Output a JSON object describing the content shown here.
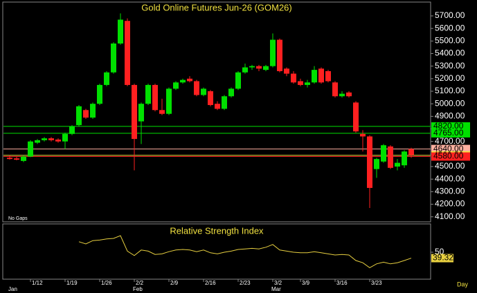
{
  "chart_data": {
    "type": "candlestick",
    "title": "Gold Online Futures Jun-26 (GOM26)",
    "subtitle": "No Gaps",
    "x_unit": "Day",
    "categories": [
      null,
      null,
      null,
      "1/12",
      null,
      null,
      null,
      null,
      "1/19",
      null,
      null,
      null,
      null,
      "1/26",
      null,
      null,
      null,
      null,
      "2/2",
      null,
      null,
      null,
      null,
      "2/9",
      null,
      null,
      null,
      null,
      "2/16",
      null,
      null,
      null,
      null,
      "2/23",
      null,
      null,
      null,
      null,
      "3/2",
      null,
      null,
      null,
      "3/9",
      null,
      null,
      null,
      null,
      "3/16",
      null,
      null,
      null,
      null,
      "3/23",
      null,
      null,
      null,
      null,
      null,
      null
    ],
    "months": [
      "Jan",
      null,
      null,
      null,
      null,
      null,
      null,
      null,
      null,
      null,
      null,
      null,
      null,
      null,
      null,
      null,
      null,
      null,
      "Feb",
      null,
      null,
      null,
      null,
      null,
      null,
      null,
      null,
      null,
      null,
      null,
      null,
      null,
      null,
      null,
      null,
      null,
      null,
      null,
      "Mar",
      null,
      null,
      null,
      null,
      null,
      null,
      null,
      null,
      null,
      null,
      null,
      null,
      null,
      null,
      null,
      null,
      null,
      null,
      null,
      null
    ],
    "open": [
      4570,
      4565,
      4545,
      4580,
      4690,
      4710,
      4725,
      4715,
      4700,
      4760,
      4830,
      4950,
      4890,
      5000,
      5150,
      5250,
      5480,
      5660,
      5150,
      4860,
      5000,
      5150,
      4950,
      4920,
      5120,
      5170,
      5200,
      5180,
      5070,
      5100,
      5000,
      4960,
      5060,
      5120,
      5250,
      5290,
      5300,
      5270,
      5300,
      5510,
      5280,
      5240,
      5180,
      5150,
      5170,
      5280,
      5260,
      5170,
      5060,
      5090,
      5010,
      4760,
      4740,
      4480,
      4540,
      4660,
      4500,
      4510,
      4640
    ],
    "high": [
      4590,
      4580,
      4590,
      4710,
      4720,
      4735,
      4735,
      4725,
      4770,
      4830,
      4990,
      4960,
      5010,
      5160,
      5260,
      5490,
      5720,
      5680,
      5160,
      5010,
      5160,
      5160,
      5040,
      5130,
      5180,
      5200,
      5220,
      5190,
      5130,
      5110,
      5020,
      5070,
      5130,
      5260,
      5320,
      5310,
      5310,
      5310,
      5560,
      5520,
      5290,
      5260,
      5200,
      5190,
      5300,
      5290,
      5270,
      5180,
      5100,
      5100,
      5020,
      4790,
      4750,
      4570,
      4680,
      4670,
      4560,
      4630,
      4650
    ],
    "low": [
      4555,
      4550,
      4535,
      4575,
      4680,
      4700,
      4700,
      4690,
      4640,
      4750,
      4820,
      4880,
      4880,
      4990,
      5140,
      5240,
      5470,
      5140,
      4470,
      4680,
      4990,
      4940,
      4910,
      4910,
      5110,
      5160,
      5170,
      5060,
      5060,
      4980,
      4950,
      4950,
      5050,
      5110,
      5240,
      5270,
      5260,
      5260,
      5290,
      5250,
      5220,
      5160,
      5140,
      5130,
      5160,
      5160,
      5170,
      5050,
      5050,
      5050,
      4770,
      4620,
      4170,
      4410,
      4530,
      4480,
      4470,
      4490,
      4570
    ],
    "close": [
      4560,
      4555,
      4580,
      4700,
      4710,
      4725,
      4710,
      4700,
      4760,
      4820,
      4980,
      4890,
      5000,
      5150,
      5250,
      5480,
      5670,
      5150,
      4720,
      5000,
      5150,
      4950,
      4920,
      5120,
      5170,
      5190,
      5180,
      5070,
      5120,
      4990,
      4960,
      5060,
      5120,
      5250,
      5290,
      5300,
      5280,
      5300,
      5510,
      5260,
      5240,
      5170,
      5150,
      5170,
      5270,
      5170,
      5180,
      5060,
      5080,
      5060,
      4780,
      4740,
      4330,
      4560,
      4670,
      4490,
      4530,
      4620,
      4590
    ],
    "up_color": "#00e000",
    "down_color": "#ff2020",
    "ylim": [
      4060,
      5810
    ],
    "yticks": [
      {
        "value": 4100,
        "label": "4100.00"
      },
      {
        "value": 4200,
        "label": "4200.00"
      },
      {
        "value": 4300,
        "label": "4300.00"
      },
      {
        "value": 4400,
        "label": "4400.00"
      },
      {
        "value": 4500,
        "label": "4500.00"
      },
      {
        "value": 4600,
        "label": "4600.00"
      },
      {
        "value": 4700,
        "label": "4700.00"
      },
      {
        "value": 4800,
        "label": "4800.00"
      },
      {
        "value": 4900,
        "label": "4900.00"
      },
      {
        "value": 5000,
        "label": "5000.00"
      },
      {
        "value": 5100,
        "label": "5100.00"
      },
      {
        "value": 5200,
        "label": "5200.00"
      },
      {
        "value": 5300,
        "label": "5300.00"
      },
      {
        "value": 5400,
        "label": "5400.00"
      },
      {
        "value": 5500,
        "label": "5500.00"
      },
      {
        "value": 5600,
        "label": "5600.00"
      },
      {
        "value": 5700,
        "label": "5700.00"
      }
    ],
    "levels": [
      {
        "value": 4820,
        "label": "4820.00",
        "color": "#00e000"
      },
      {
        "value": 4765,
        "label": "4765.00",
        "color": "#00e000"
      },
      {
        "value": 4640,
        "label": "4640.00",
        "color": "#ffb0a0"
      },
      {
        "value": 4589.5,
        "label": "4589.50",
        "color": "#f0e040"
      },
      {
        "value": 4580,
        "label": "4580.00",
        "color": "#ff2020"
      }
    ],
    "indicator": {
      "title": "Relative Strength Index",
      "color": "#e8d040",
      "ylim": [
        0,
        100
      ],
      "yticks": [
        50
      ],
      "values": [
        null,
        null,
        null,
        null,
        null,
        null,
        null,
        null,
        null,
        null,
        69,
        65,
        71,
        72,
        74,
        75,
        80,
        52,
        44,
        54,
        52,
        46,
        47,
        51,
        54,
        55,
        54,
        51,
        54,
        49,
        47,
        50,
        52,
        55,
        56,
        57,
        56,
        59,
        64,
        54,
        52,
        50,
        49,
        49,
        51,
        49,
        47,
        45,
        46,
        45,
        35,
        31,
        22,
        29,
        32,
        29,
        31,
        35,
        39.32
      ],
      "last_label": "39.32"
    }
  }
}
